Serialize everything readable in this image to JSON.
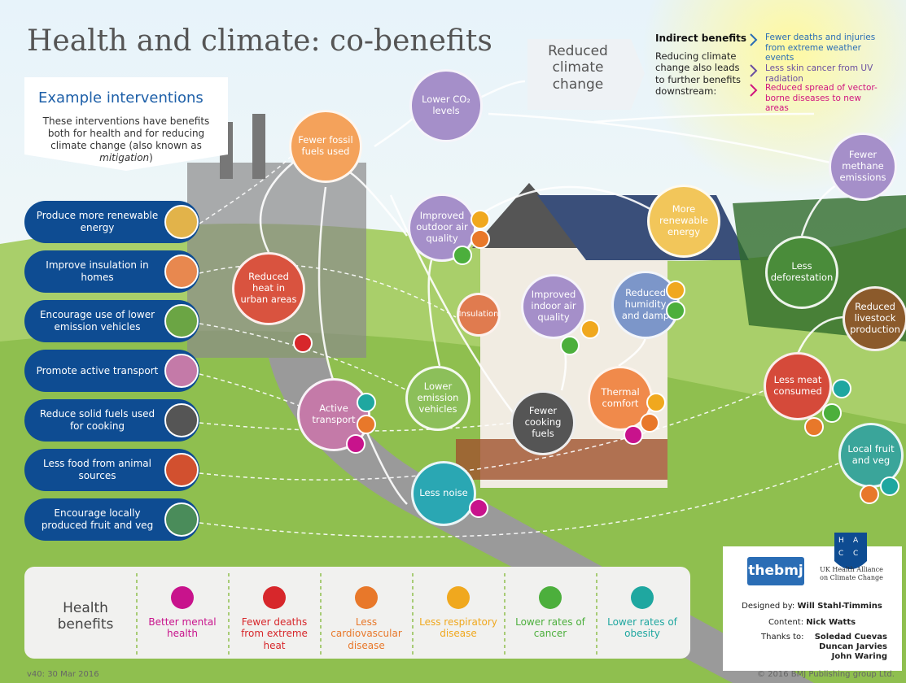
{
  "header": {
    "title": "Health and climate: co-benefits"
  },
  "climate": {
    "title": "Reduced climate change",
    "indirect_title": "Indirect benefits",
    "indirect_text": "Reducing climate change also leads to further benefits downstream:",
    "indirect_items": [
      "Fewer deaths and injuries from extreme weather events",
      "Less skin cancer from UV radiation",
      "Reduced spread of vector-borne diseases to new areas"
    ]
  },
  "interventions": {
    "title": "Example interventions",
    "description": [
      "These interventions have benefits both for health and for reducing climate change (also known as ",
      "mitigation",
      ")"
    ],
    "items": [
      "Produce more renewable energy",
      "Improve insulation in homes",
      "Encourage use of lower emission vehicles",
      "Promote active transport",
      "Reduce solid fuels used for cooking",
      "Less food from animal sources",
      "Encourage locally produced fruit and veg"
    ]
  },
  "nodes": [
    "Lower CO₂ levels",
    "Fewer fossil fuels used",
    "Improved outdoor air quality",
    "More renewable energy",
    "Fewer methane emissions",
    "Reduced heat in urban areas",
    "Insulation",
    "Improved indoor air quality",
    "Reduced humidity and damp",
    "Less deforestation",
    "Reduced livestock production",
    "Active transport",
    "Lower emission vehicles",
    "Fewer cooking fuels",
    "Thermal comfort",
    "Less meat consumed",
    "Local fruit and veg",
    "Less noise"
  ],
  "health_benefits": {
    "title": "Health benefits",
    "items": [
      "Better mental health",
      "Fewer deaths from extreme heat",
      "Less cardiovascular disease",
      "Less respiratory disease",
      "Lower rates of cancer",
      "Lower rates of obesity"
    ]
  },
  "credits": {
    "logo": "thebmj",
    "logo_letters": [
      "H",
      "A",
      "C",
      "C"
    ],
    "alliance": "UK Health Alliance on Climate Change",
    "designed_label": "Designed by:",
    "designer": "Will Stahl-Timmins",
    "content_label": "Content:",
    "content_author": "Nick Watts",
    "thanks_label": "Thanks to:",
    "thanks": [
      "Soledad Cuevas",
      "Duncan Jarvies",
      "John Waring"
    ]
  },
  "footer": {
    "version": "v40: 30 Mar 2016",
    "copyright": "© 2016 BMJ Publishing group Ltd."
  }
}
